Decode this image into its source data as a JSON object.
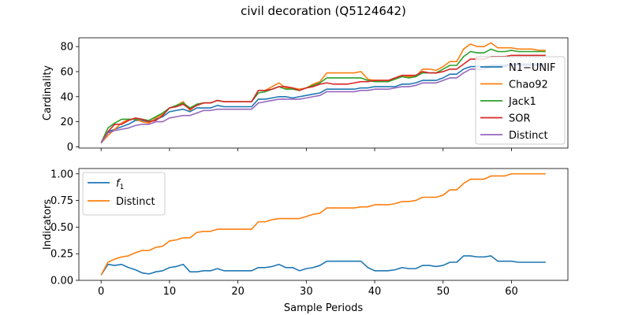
{
  "figure": {
    "title": "civil decoration (Q5124642)"
  },
  "chart_data": [
    {
      "type": "line",
      "ylabel": "Cardinality",
      "xlabel": "",
      "xlim": [
        -3.25,
        68.25
      ],
      "ylim": [
        -1,
        87
      ],
      "xticks": [
        0,
        10,
        20,
        30,
        40,
        50,
        60
      ],
      "yticks": [
        0,
        20,
        40,
        60,
        80
      ],
      "legend": "right",
      "grid": false,
      "x": [
        0,
        1,
        2,
        3,
        4,
        5,
        6,
        7,
        8,
        9,
        10,
        11,
        12,
        13,
        14,
        15,
        16,
        17,
        18,
        19,
        20,
        21,
        22,
        23,
        24,
        25,
        26,
        27,
        28,
        29,
        30,
        31,
        32,
        33,
        34,
        35,
        36,
        37,
        38,
        39,
        40,
        41,
        42,
        43,
        44,
        45,
        46,
        47,
        48,
        49,
        50,
        51,
        52,
        53,
        54,
        55,
        56,
        57,
        58,
        59,
        60,
        61,
        62,
        63,
        64,
        65
      ],
      "series": [
        {
          "name": "N1−UNIF",
          "color": "#1f77b4",
          "values": [
            3,
            12,
            14,
            16,
            18,
            21,
            21,
            20,
            22,
            24,
            28,
            29,
            30,
            28,
            31,
            31,
            31,
            33,
            32,
            32,
            32,
            32,
            32,
            38,
            38,
            39,
            40,
            40,
            39,
            40,
            41,
            42,
            43,
            46,
            46,
            46,
            46,
            46,
            47,
            47,
            48,
            48,
            48,
            48,
            50,
            50,
            51,
            53,
            53,
            53,
            55,
            58,
            58,
            62,
            64,
            64,
            64,
            65,
            65,
            65,
            66,
            66,
            66,
            66,
            66,
            66
          ]
        },
        {
          "name": "Chao92",
          "color": "#ff7f0e",
          "values": [
            3,
            9,
            14,
            19,
            22,
            22,
            20,
            19,
            23,
            26,
            31,
            33,
            36,
            29,
            34,
            35,
            35,
            37,
            36,
            36,
            36,
            36,
            36,
            45,
            45,
            48,
            51,
            47,
            47,
            46,
            47,
            50,
            52,
            59,
            59,
            59,
            59,
            59,
            60,
            54,
            53,
            53,
            53,
            55,
            57,
            56,
            56,
            62,
            62,
            61,
            64,
            68,
            68,
            78,
            82,
            80,
            80,
            83,
            79,
            79,
            79,
            78,
            78,
            78,
            77,
            77
          ]
        },
        {
          "name": "Jack1",
          "color": "#2ca02c",
          "values": [
            3,
            15,
            19,
            22,
            22,
            22,
            22,
            21,
            24,
            27,
            31,
            33,
            35,
            31,
            34,
            35,
            35,
            37,
            36,
            36,
            36,
            36,
            36,
            43,
            44,
            46,
            48,
            46,
            46,
            45,
            47,
            49,
            51,
            55,
            55,
            55,
            55,
            55,
            55,
            53,
            52,
            52,
            52,
            54,
            56,
            55,
            56,
            59,
            59,
            59,
            62,
            65,
            65,
            72,
            76,
            75,
            75,
            78,
            76,
            76,
            77,
            76,
            76,
            76,
            76,
            76
          ]
        },
        {
          "name": "SOR",
          "color": "#d62728",
          "values": [
            3,
            12,
            18,
            18,
            21,
            23,
            22,
            20,
            21,
            25,
            31,
            32,
            34,
            30,
            33,
            35,
            35,
            37,
            36,
            36,
            36,
            36,
            36,
            45,
            45,
            46,
            48,
            48,
            47,
            45,
            47,
            48,
            50,
            51,
            50,
            50,
            50,
            51,
            52,
            52,
            53,
            53,
            53,
            55,
            57,
            57,
            57,
            60,
            59,
            59,
            60,
            62,
            62,
            66,
            70,
            70,
            70,
            72,
            72,
            72,
            73,
            73,
            73,
            73,
            73,
            73
          ]
        },
        {
          "name": "Distinct",
          "color": "#9467bd",
          "values": [
            3,
            11,
            13,
            14,
            15,
            17,
            18,
            18,
            20,
            20,
            23,
            24,
            25,
            25,
            27,
            29,
            29,
            30,
            30,
            30,
            30,
            30,
            30,
            35,
            36,
            37,
            38,
            38,
            38,
            38,
            39,
            40,
            41,
            44,
            44,
            44,
            44,
            44,
            45,
            45,
            46,
            46,
            46,
            47,
            48,
            48,
            49,
            51,
            51,
            51,
            53,
            55,
            55,
            59,
            62,
            62,
            62,
            64,
            64,
            64,
            65,
            65,
            65,
            65,
            65,
            65
          ]
        }
      ]
    },
    {
      "type": "line",
      "ylabel": "Indicators",
      "xlabel": "Sample Periods",
      "xlim": [
        -3.25,
        68.25
      ],
      "ylim": [
        0,
        1.05
      ],
      "xticks": [
        0,
        10,
        20,
        30,
        40,
        50,
        60
      ],
      "yticks": [
        0.0,
        0.25,
        0.5,
        0.75,
        1.0
      ],
      "ytick_labels": [
        "0.00",
        "0.25",
        "0.50",
        "0.75",
        "1.00"
      ],
      "legend": "top-left",
      "grid": false,
      "x": [
        0,
        1,
        2,
        3,
        4,
        5,
        6,
        7,
        8,
        9,
        10,
        11,
        12,
        13,
        14,
        15,
        16,
        17,
        18,
        19,
        20,
        21,
        22,
        23,
        24,
        25,
        26,
        27,
        28,
        29,
        30,
        31,
        32,
        33,
        34,
        35,
        36,
        37,
        38,
        39,
        40,
        41,
        42,
        43,
        44,
        45,
        46,
        47,
        48,
        49,
        50,
        51,
        52,
        53,
        54,
        55,
        56,
        57,
        58,
        59,
        60,
        61,
        62,
        63,
        64,
        65
      ],
      "series": [
        {
          "name": "f₁",
          "name_main": "f",
          "name_sub": "1",
          "color": "#1f77b4",
          "values": [
            0.05,
            0.15,
            0.14,
            0.15,
            0.12,
            0.1,
            0.07,
            0.06,
            0.08,
            0.09,
            0.12,
            0.13,
            0.15,
            0.08,
            0.08,
            0.09,
            0.09,
            0.11,
            0.09,
            0.09,
            0.09,
            0.09,
            0.09,
            0.12,
            0.12,
            0.13,
            0.15,
            0.12,
            0.12,
            0.09,
            0.11,
            0.12,
            0.14,
            0.18,
            0.18,
            0.18,
            0.18,
            0.18,
            0.18,
            0.12,
            0.09,
            0.09,
            0.09,
            0.1,
            0.12,
            0.11,
            0.11,
            0.14,
            0.14,
            0.13,
            0.14,
            0.17,
            0.17,
            0.23,
            0.23,
            0.22,
            0.22,
            0.23,
            0.18,
            0.18,
            0.18,
            0.17,
            0.17,
            0.17,
            0.17,
            0.17
          ]
        },
        {
          "name": "Distinct",
          "color": "#ff7f0e",
          "values": [
            0.05,
            0.17,
            0.2,
            0.22,
            0.23,
            0.26,
            0.28,
            0.28,
            0.31,
            0.32,
            0.37,
            0.38,
            0.4,
            0.4,
            0.45,
            0.46,
            0.46,
            0.48,
            0.48,
            0.48,
            0.48,
            0.48,
            0.48,
            0.55,
            0.55,
            0.57,
            0.58,
            0.58,
            0.58,
            0.58,
            0.6,
            0.62,
            0.63,
            0.68,
            0.68,
            0.68,
            0.68,
            0.68,
            0.69,
            0.69,
            0.71,
            0.71,
            0.71,
            0.72,
            0.74,
            0.74,
            0.75,
            0.78,
            0.78,
            0.78,
            0.8,
            0.85,
            0.85,
            0.91,
            0.95,
            0.95,
            0.95,
            0.98,
            0.98,
            0.98,
            1.0,
            1.0,
            1.0,
            1.0,
            1.0,
            1.0
          ]
        }
      ]
    }
  ]
}
